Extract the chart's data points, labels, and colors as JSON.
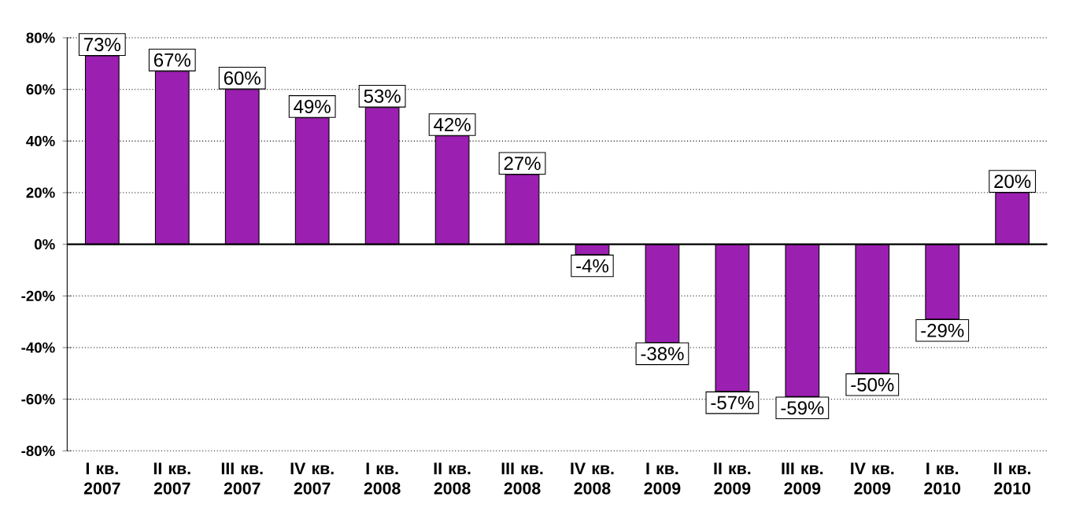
{
  "chart_data": {
    "type": "bar",
    "categories": [
      "I кв. 2007",
      "II кв. 2007",
      "III кв. 2007",
      "IV кв. 2007",
      "I кв. 2008",
      "II кв. 2008",
      "III кв. 2008",
      "IV кв. 2008",
      "I кв. 2009",
      "II кв. 2009",
      "III кв. 2009",
      "IV кв. 2009",
      "I кв. 2010",
      "II кв. 2010"
    ],
    "values": [
      73,
      67,
      60,
      49,
      53,
      42,
      27,
      -4,
      -38,
      -57,
      -59,
      -50,
      -29,
      20
    ],
    "value_labels": [
      "73%",
      "67%",
      "60%",
      "49%",
      "53%",
      "42%",
      "27%",
      "-4%",
      "-38%",
      "-57%",
      "-59%",
      "-50%",
      "-29%",
      "20%"
    ],
    "color": "#9b1fb0",
    "ylim": [
      -80,
      80
    ],
    "yticks": [
      {
        "value": -80,
        "label": "-80%"
      },
      {
        "value": -60,
        "label": "-60%"
      },
      {
        "value": -40,
        "label": "-40%"
      },
      {
        "value": -20,
        "label": "-20%"
      },
      {
        "value": 0,
        "label": "0%"
      },
      {
        "value": 20,
        "label": "20%"
      },
      {
        "value": 40,
        "label": "40%"
      },
      {
        "value": 60,
        "label": "60%"
      },
      {
        "value": 80,
        "label": "80%"
      }
    ],
    "grid": "y"
  }
}
